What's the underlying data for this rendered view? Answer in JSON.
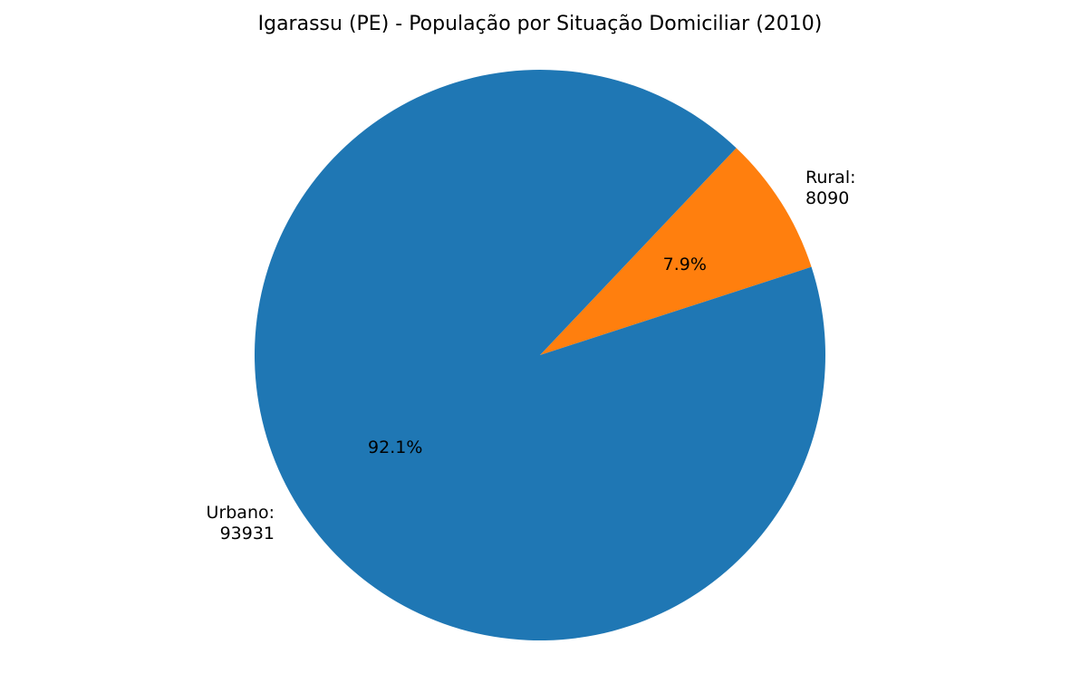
{
  "chart_data": {
    "type": "pie",
    "title": "Igarassu (PE) - População por Situação Domiciliar (2010)",
    "slices": [
      {
        "category": "Urbano",
        "label_title": "Urbano:",
        "label_value": "93931",
        "value": 93931,
        "percent_label": "92.1%",
        "color": "#1f77b4"
      },
      {
        "category": "Rural",
        "label_title": "Rural:",
        "label_value": "8090",
        "value": 8090,
        "percent_label": "7.9%",
        "color": "#ff7f0e"
      }
    ],
    "legend": "none"
  }
}
